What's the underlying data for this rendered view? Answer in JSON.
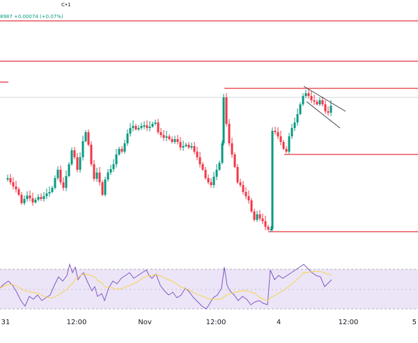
{
  "header": {
    "symbol_suffix": "C•1",
    "price_readout": "8987 +0.00074 (+0.07%)"
  },
  "chart_data": {
    "type": "candlestick",
    "x_tick_labels": [
      "31",
      "12:00",
      "Nov",
      "12:00",
      "4",
      "12:00",
      "5"
    ],
    "horizontal_levels": [
      {
        "level": "top"
      },
      {
        "level": "upper"
      },
      {
        "level": "resistance"
      },
      {
        "level": "mid_support"
      },
      {
        "level": "low_support"
      }
    ],
    "channel": "descending flag",
    "indicator": {
      "type": "rsi",
      "band": "shaded",
      "lines": [
        "rsi",
        "signal"
      ]
    }
  },
  "colors": {
    "up": "#089981",
    "down": "#f23645",
    "level": "#e5323e",
    "rsi": "#7e57c2",
    "signal": "#f7d44a",
    "band": "#ece5f7"
  }
}
